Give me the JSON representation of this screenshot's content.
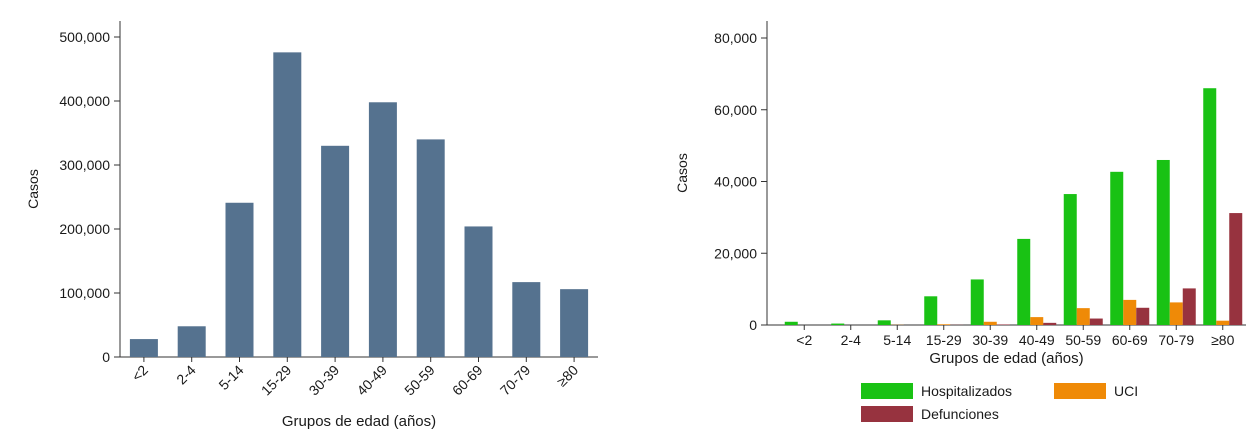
{
  "chart_data": [
    {
      "type": "bar",
      "xlabel": "Grupos de edad (años)",
      "ylabel": "Casos",
      "categories": [
        "<2",
        "2-4",
        "5-14",
        "15-29",
        "30-39",
        "40-49",
        "50-59",
        "60-69",
        "70-79",
        "≥80"
      ],
      "values": [
        28000,
        48000,
        241000,
        476000,
        330000,
        398000,
        340000,
        204000,
        117000,
        106000
      ],
      "ylim": [
        0,
        500000
      ],
      "yticks": [
        0,
        100000,
        200000,
        300000,
        400000,
        500000
      ],
      "ytick_labels": [
        "0",
        "100,000",
        "200,000",
        "300,000",
        "400,000",
        "500,000"
      ],
      "bar_color": "#55728f",
      "grid": false
    },
    {
      "type": "bar",
      "xlabel": "Grupos de edad (años)",
      "ylabel": "Casos",
      "categories": [
        "<2",
        "2-4",
        "5-14",
        "15-29",
        "30-39",
        "40-49",
        "50-59",
        "60-69",
        "70-79",
        "≥80"
      ],
      "series": [
        {
          "name": "Hospitalizados",
          "color": "#19c214",
          "values": [
            900,
            400,
            1300,
            8000,
            12700,
            24000,
            36500,
            42700,
            46000,
            66000
          ]
        },
        {
          "name": "UCI",
          "color": "#ef8a07",
          "values": [
            0,
            0,
            50,
            200,
            900,
            2200,
            4700,
            7000,
            6300,
            1200
          ]
        },
        {
          "name": "Defunciones",
          "color": "#97333f",
          "values": [
            0,
            0,
            0,
            50,
            150,
            600,
            1800,
            4800,
            10200,
            31200
          ]
        }
      ],
      "ylim": [
        0,
        80000
      ],
      "yticks": [
        0,
        20000,
        40000,
        60000,
        80000
      ],
      "ytick_labels": [
        "0",
        "20,000",
        "40,000",
        "60,000",
        "80,000"
      ],
      "legend": "bottom",
      "grid": false
    }
  ]
}
